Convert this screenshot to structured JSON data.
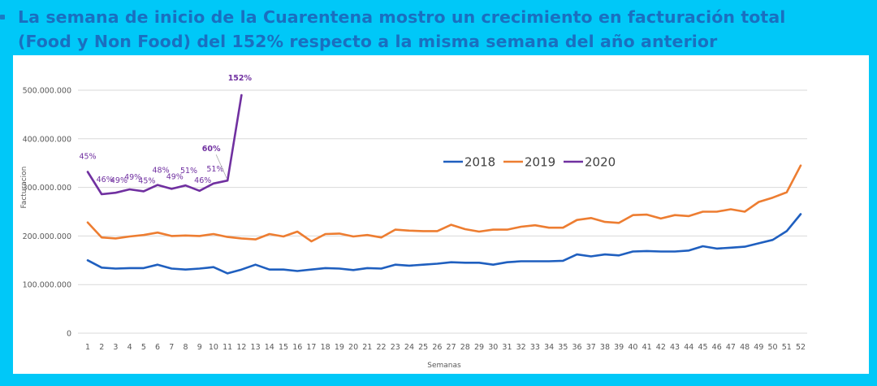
{
  "headline": {
    "line1": "La semana de inicio de la Cuarentena mostro un crecimiento en facturación total",
    "line2": "(Food y Non Food) del 152% respecto a la misma semana del año anterior"
  },
  "chart_data": {
    "type": "line",
    "title": "",
    "xlabel": "Semanas",
    "ylabel": "Facturacion",
    "ylim": [
      0,
      500000000
    ],
    "yticks": [
      {
        "value": 0,
        "label": "0"
      },
      {
        "value": 100000000,
        "label": "100.000.000"
      },
      {
        "value": 200000000,
        "label": "200.000.000"
      },
      {
        "value": 300000000,
        "label": "300.000.000"
      },
      {
        "value": 400000000,
        "label": "400.000.000"
      },
      {
        "value": 500000000,
        "label": "500.000.000"
      }
    ],
    "grid": true,
    "legend_position": "center-right",
    "x": [
      1,
      2,
      3,
      4,
      5,
      6,
      7,
      8,
      9,
      10,
      11,
      12,
      13,
      14,
      15,
      16,
      17,
      18,
      19,
      20,
      21,
      22,
      23,
      24,
      25,
      26,
      27,
      28,
      29,
      30,
      31,
      32,
      33,
      34,
      35,
      36,
      37,
      38,
      39,
      40,
      41,
      42,
      43,
      44,
      45,
      46,
      47,
      48,
      49,
      50,
      51,
      52
    ],
    "series": [
      {
        "name": "2018",
        "color": "#1f5fbf",
        "values": [
          150000000,
          135000000,
          133000000,
          134000000,
          134000000,
          141000000,
          133000000,
          131000000,
          133000000,
          136000000,
          123000000,
          131000000,
          141000000,
          131000000,
          131000000,
          128000000,
          131000000,
          134000000,
          133000000,
          130000000,
          134000000,
          133000000,
          141000000,
          139000000,
          141000000,
          143000000,
          146000000,
          145000000,
          145000000,
          141000000,
          146000000,
          148000000,
          148000000,
          148000000,
          149000000,
          162000000,
          158000000,
          162000000,
          160000000,
          168000000,
          169000000,
          168000000,
          168000000,
          170000000,
          179000000,
          174000000,
          176000000,
          178000000,
          185000000,
          192000000,
          210000000,
          245000000
        ]
      },
      {
        "name": "2019",
        "color": "#ed7d31",
        "values": [
          228000000,
          197000000,
          195000000,
          199000000,
          202000000,
          207000000,
          200000000,
          201000000,
          200000000,
          204000000,
          198000000,
          195000000,
          193000000,
          204000000,
          199000000,
          209000000,
          189000000,
          204000000,
          205000000,
          199000000,
          202000000,
          197000000,
          213000000,
          211000000,
          210000000,
          210000000,
          223000000,
          214000000,
          209000000,
          213000000,
          213000000,
          219000000,
          222000000,
          217000000,
          217000000,
          233000000,
          237000000,
          229000000,
          227000000,
          243000000,
          244000000,
          236000000,
          243000000,
          241000000,
          250000000,
          250000000,
          255000000,
          250000000,
          270000000,
          279000000,
          290000000,
          345000000
        ]
      },
      {
        "name": "2020",
        "color": "#7030a0",
        "values": [
          332000000,
          286000000,
          289000000,
          296000000,
          292000000,
          305000000,
          297000000,
          304000000,
          293000000,
          308000000,
          314000000,
          490000000
        ],
        "data_labels": [
          "45%",
          "46%",
          "49%",
          "49%",
          "45%",
          "48%",
          "49%",
          "51%",
          "46%",
          "51%",
          "60%",
          "152%"
        ]
      }
    ]
  }
}
